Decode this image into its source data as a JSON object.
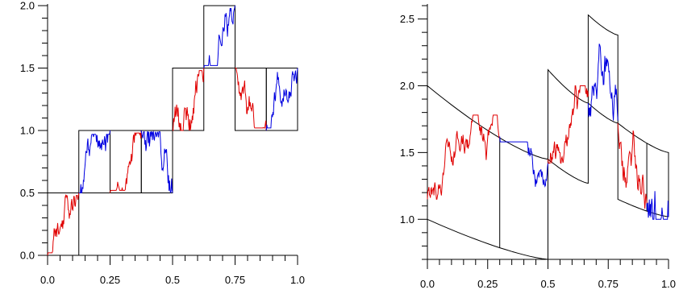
{
  "chart_data": [
    {
      "type": "line",
      "xlim": [
        0,
        1
      ],
      "ylim": [
        0,
        2
      ],
      "grid": false,
      "x_ticks": [
        {
          "value": 0.0,
          "label": "0.0"
        },
        {
          "value": 0.25,
          "label": "0.25"
        },
        {
          "value": 0.5,
          "label": "0.5"
        },
        {
          "value": 0.75,
          "label": "0.75"
        },
        {
          "value": 1.0,
          "label": "1.0"
        }
      ],
      "y_ticks": [
        {
          "value": 0.0,
          "label": "0.0"
        },
        {
          "value": 0.5,
          "label": "0.5"
        },
        {
          "value": 1.0,
          "label": "1.0"
        },
        {
          "value": 1.5,
          "label": "1.5"
        },
        {
          "value": 2.0,
          "label": "2.0"
        }
      ],
      "boxes": [
        {
          "x": [
            0,
            0.125
          ],
          "y": [
            0,
            0.5
          ]
        },
        {
          "x": [
            0.125,
            0.25
          ],
          "y": [
            0.5,
            1.0
          ]
        },
        {
          "x": [
            0.25,
            0.375
          ],
          "y": [
            0.5,
            1.0
          ]
        },
        {
          "x": [
            0.375,
            0.5
          ],
          "y": [
            0.5,
            1.0
          ]
        },
        {
          "x": [
            0.5,
            0.625
          ],
          "y": [
            1.0,
            1.5
          ]
        },
        {
          "x": [
            0.625,
            0.75
          ],
          "y": [
            1.5,
            2.0
          ]
        },
        {
          "x": [
            0.75,
            0.875
          ],
          "y": [
            1.0,
            1.5
          ]
        },
        {
          "x": [
            0.875,
            1.0
          ],
          "y": [
            1.0,
            1.5
          ]
        }
      ],
      "segments": [
        {
          "color": "#e00000",
          "x": [
            0,
            0.125
          ],
          "start": 0.0,
          "end": 0.5,
          "peak": 0.48,
          "trough": 0.02,
          "seed": 11
        },
        {
          "color": "#0000e0",
          "x": [
            0.125,
            0.25
          ],
          "start": 0.5,
          "end": 1.0,
          "peak": 0.97,
          "trough": 0.5,
          "seed": 12
        },
        {
          "color": "#e00000",
          "x": [
            0.25,
            0.375
          ],
          "start": 0.5,
          "end": 1.0,
          "peak": 0.98,
          "trough": 0.52,
          "seed": 13
        },
        {
          "color": "#0000e0",
          "x": [
            0.375,
            0.5
          ],
          "start": 1.0,
          "end": 0.5,
          "peak": 0.99,
          "trough": 0.5,
          "seed": 14
        },
        {
          "color": "#e00000",
          "x": [
            0.5,
            0.625
          ],
          "start": 1.0,
          "end": 1.5,
          "peak": 1.48,
          "trough": 1.0,
          "seed": 15
        },
        {
          "color": "#0000e0",
          "x": [
            0.625,
            0.75
          ],
          "start": 1.5,
          "end": 2.0,
          "peak": 1.98,
          "trough": 1.52,
          "seed": 16
        },
        {
          "color": "#e00000",
          "x": [
            0.75,
            0.875
          ],
          "start": 1.5,
          "end": 1.0,
          "peak": 1.5,
          "trough": 1.02,
          "seed": 17
        },
        {
          "color": "#0000e0",
          "x": [
            0.875,
            1.0
          ],
          "start": 1.0,
          "end": 1.5,
          "peak": 1.48,
          "trough": 1.02,
          "seed": 18
        }
      ]
    },
    {
      "type": "line",
      "xlim": [
        0,
        1
      ],
      "ylim": [
        0.7,
        2.6
      ],
      "grid": false,
      "x_ticks": [
        {
          "value": 0.0,
          "label": "0.0"
        },
        {
          "value": 0.25,
          "label": "0.25"
        },
        {
          "value": 0.5,
          "label": "0.5"
        },
        {
          "value": 0.75,
          "label": "0.75"
        },
        {
          "value": 1.0,
          "label": "1.0"
        }
      ],
      "y_ticks": [
        {
          "value": 1.0,
          "label": "1.0"
        },
        {
          "value": 1.5,
          "label": "1.5"
        },
        {
          "value": 2.0,
          "label": "2.0"
        },
        {
          "value": 2.5,
          "label": "2.5"
        }
      ],
      "bands": [
        {
          "x": [
            0,
            0.5
          ],
          "lower": [
            1.0,
            0.7
          ],
          "upper": [
            2.0,
            1.45
          ]
        },
        {
          "x": [
            0.5,
            0.667
          ],
          "lower": [
            1.45,
            1.27
          ],
          "upper": [
            2.12,
            1.87
          ]
        },
        {
          "x": [
            0.667,
            0.79
          ],
          "lower": [
            1.87,
            1.72
          ],
          "upper": [
            2.53,
            2.38
          ]
        },
        {
          "x": [
            0.79,
            1.0
          ],
          "lower": [
            1.15,
            1.02
          ],
          "upper": [
            1.72,
            1.5
          ]
        }
      ],
      "dividers": [
        0.3,
        0.91
      ],
      "segments": [
        {
          "color": "#e00000",
          "x": [
            0,
            0.3
          ],
          "start": 1.15,
          "end": 1.62,
          "peak": 1.78,
          "trough": 1.15,
          "seed": 21
        },
        {
          "color": "#0000e0",
          "x": [
            0.3,
            0.5
          ],
          "start": 1.62,
          "end": 1.42,
          "peak": 1.58,
          "trough": 0.85,
          "seed": 22
        },
        {
          "color": "#e00000",
          "x": [
            0.5,
            0.667
          ],
          "start": 1.45,
          "end": 1.92,
          "peak": 2.0,
          "trough": 1.42,
          "seed": 23
        },
        {
          "color": "#0000e0",
          "x": [
            0.667,
            0.79
          ],
          "start": 1.87,
          "end": 1.74,
          "peak": 2.4,
          "trough": 1.74,
          "seed": 24
        },
        {
          "color": "#e00000",
          "x": [
            0.79,
            0.91
          ],
          "start": 1.72,
          "end": 1.12,
          "peak": 1.72,
          "trough": 1.08,
          "seed": 25
        },
        {
          "color": "#0000e0",
          "x": [
            0.91,
            1.0
          ],
          "start": 1.12,
          "end": 1.02,
          "peak": 1.48,
          "trough": 1.0,
          "seed": 26
        }
      ]
    }
  ]
}
